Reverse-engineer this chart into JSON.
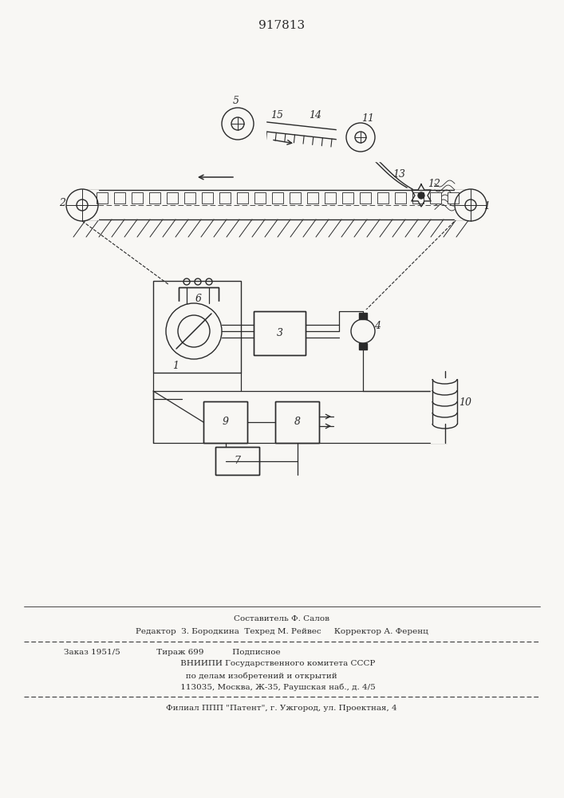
{
  "title": "917813",
  "bg_color": "#f8f7f4",
  "line_color": "#2a2a2a",
  "footer_lines": [
    "Составитель Ф. Салов",
    "Редактор  З. Бородкина  Техред М. Рейвес     Корректор А. Ференц",
    "Заказ 1951/5              Тираж 699           Подписное",
    "     ВНИИПИ Государственного комитета СССР",
    "       по делам изобретений и открытий",
    "     113035, Москва, Ж-35, Раушская наб., д. 4/5",
    "Филиал ППП \"Патент\", г. Ужгород, ул. Проектная, 4"
  ]
}
